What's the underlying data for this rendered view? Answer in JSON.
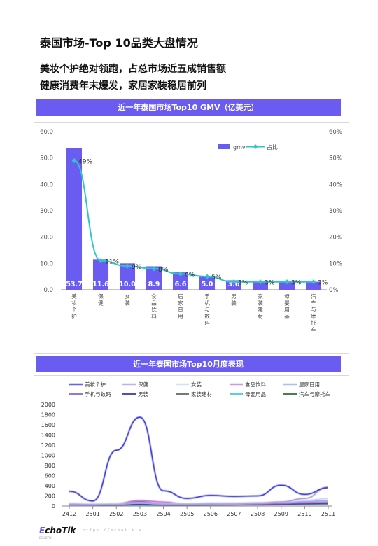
{
  "page": {
    "title": "泰国市场-Top 10品类大盘情况",
    "headline1": "美妆个护绝对领跑，占总市场近五成销售额",
    "headline2": "健康消费年末爆发，家居家装稳居前列"
  },
  "footer": {
    "logo_prefix": "E",
    "logo_rest": "choTik",
    "logo_sub": "ECHOTIK",
    "url": "https://echotik.ai"
  },
  "chart_data": [
    {
      "type": "bar",
      "title": "近一年泰国市场Top10 GMV（亿美元）",
      "categories": [
        "美妆个护",
        "保健",
        "女装",
        "食品饮料",
        "居家日用",
        "手机与数码",
        "男装",
        "家装建材",
        "母婴用品",
        "汽车与摩托车"
      ],
      "series": [
        {
          "name": "gmv",
          "type": "bar",
          "axis": "left",
          "color": "#6a5cf0",
          "values": [
            53.7,
            11.6,
            10.0,
            8.9,
            6.6,
            5.0,
            3.6,
            3.0,
            3.0,
            3.0
          ],
          "labels": [
            "53.7",
            "11.6",
            "10.0",
            "8.9",
            "6.6",
            "5.0",
            "3.6",
            "",
            "",
            ""
          ]
        },
        {
          "name": "占比",
          "type": "line",
          "axis": "right",
          "color": "#2fc5cf",
          "values": [
            49,
            11,
            9,
            8,
            6,
            5,
            3,
            3,
            3,
            3
          ],
          "labels": [
            "49%",
            "11%",
            "9%",
            "8%",
            "6%",
            "5%",
            "3%",
            "3%",
            "3%",
            "3%"
          ]
        }
      ],
      "ylim_left": [
        0,
        60
      ],
      "ylim_right": [
        0,
        60
      ],
      "yticks_left": [
        "0.0",
        "10.0",
        "20.0",
        "30.0",
        "40.0",
        "50.0",
        "60.0"
      ],
      "yticks_right": [
        "0%",
        "10%",
        "20%",
        "30%",
        "40%",
        "50%",
        "60%"
      ],
      "legend": "top-right",
      "grid": false
    },
    {
      "type": "line",
      "title": "近一年泰国市场Top10月度表现",
      "x": [
        "2412",
        "2501",
        "2502",
        "2503",
        "2504",
        "2505",
        "2506",
        "2507",
        "2508",
        "2509",
        "2510",
        "2511"
      ],
      "ylim": [
        0,
        2000
      ],
      "yticks": [
        "0",
        "200",
        "400",
        "600",
        "800",
        "1000",
        "1200",
        "1400",
        "1600",
        "1800",
        "2000"
      ],
      "legend": "top",
      "grid": false,
      "series": [
        {
          "name": "美妆个护",
          "color": "#3f3fd8",
          "values": [
            290,
            100,
            1100,
            1750,
            300,
            150,
            210,
            190,
            200,
            410,
            230,
            360
          ]
        },
        {
          "name": "保健",
          "color": "#b39ddb",
          "values": [
            20,
            20,
            30,
            70,
            40,
            35,
            40,
            35,
            55,
            80,
            150,
            370
          ]
        },
        {
          "name": "女装",
          "color": "#c9dcf2",
          "values": [
            60,
            50,
            50,
            60,
            50,
            50,
            60,
            60,
            70,
            80,
            110,
            150
          ]
        },
        {
          "name": "食品饮料",
          "color": "#c97bd6",
          "values": [
            20,
            30,
            50,
            110,
            80,
            40,
            50,
            50,
            50,
            60,
            70,
            80
          ]
        },
        {
          "name": "居家日用",
          "color": "#8fb3f0",
          "values": [
            30,
            30,
            40,
            60,
            40,
            40,
            50,
            50,
            60,
            70,
            90,
            110
          ]
        },
        {
          "name": "手机与数码",
          "color": "#7a55c9",
          "values": [
            20,
            25,
            40,
            90,
            40,
            30,
            35,
            35,
            40,
            50,
            60,
            70
          ]
        },
        {
          "name": "男装",
          "color": "#2222aa",
          "values": [
            30,
            25,
            30,
            40,
            30,
            30,
            35,
            35,
            40,
            45,
            55,
            65
          ]
        },
        {
          "name": "家装建材",
          "color": "#555555",
          "values": [
            25,
            25,
            30,
            35,
            30,
            30,
            35,
            35,
            40,
            45,
            50,
            55
          ]
        },
        {
          "name": "母婴用品",
          "color": "#2fc5cf",
          "values": [
            20,
            20,
            25,
            30,
            25,
            25,
            30,
            30,
            35,
            40,
            45,
            50
          ]
        },
        {
          "name": "汽车与摩托车",
          "color": "#1e5a2a",
          "values": [
            20,
            20,
            25,
            30,
            25,
            25,
            25,
            30,
            30,
            35,
            40,
            45
          ]
        }
      ]
    }
  ]
}
